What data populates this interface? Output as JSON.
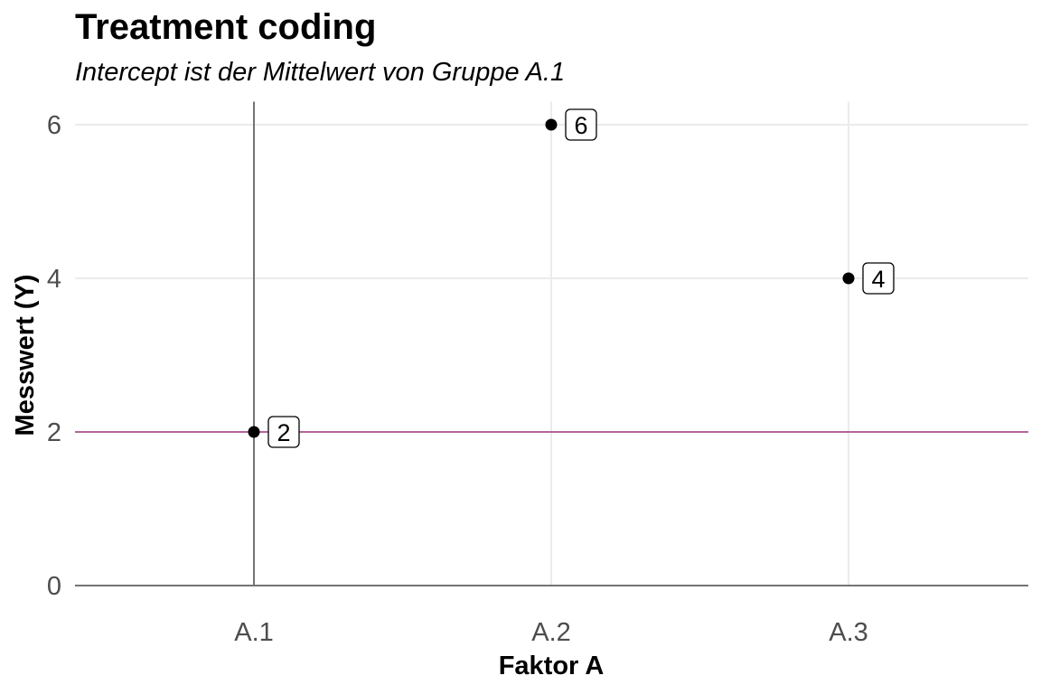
{
  "chart_data": {
    "type": "scatter",
    "title": "Treatment coding",
    "subtitle": "Intercept ist der Mittelwert von Gruppe A.1",
    "xlabel": "Faktor A",
    "ylabel": "Messwert (Y)",
    "categories": [
      "A.1",
      "A.2",
      "A.3"
    ],
    "values": [
      2,
      6,
      4
    ],
    "point_labels": [
      "2",
      "6",
      "4"
    ],
    "yticks": [
      0,
      2,
      4,
      6
    ],
    "ylim": [
      0,
      6.3
    ],
    "reference_lines": {
      "horizontal": {
        "y": 2,
        "color": "#b5659a"
      },
      "vertical": {
        "category": "A.1",
        "color": "#737373"
      },
      "baseline": {
        "y": 0,
        "color": "#737373"
      }
    },
    "grid": true,
    "legend": "none"
  }
}
